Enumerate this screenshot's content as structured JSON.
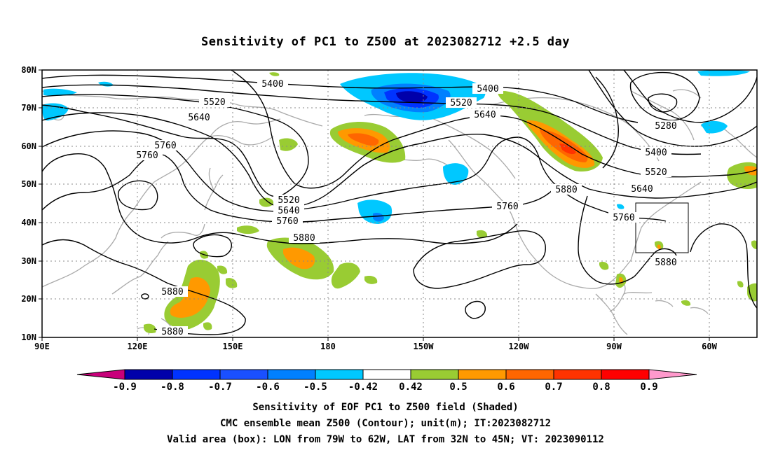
{
  "title": "Sensitivity of PC1 to Z500 at 2023082712 +2.5 day",
  "map": {
    "lon_labels": [
      "90E",
      "120E",
      "150E",
      "180",
      "150W",
      "120W",
      "90W",
      "60W"
    ],
    "lat_labels": [
      "80N",
      "70N",
      "60N",
      "50N",
      "40N",
      "30N",
      "20N",
      "10N"
    ],
    "contour_labels": [
      "5400",
      "5400",
      "5520",
      "5520",
      "5640",
      "5640",
      "5760",
      "5760",
      "5520",
      "5640",
      "5760",
      "5880",
      "5760",
      "5880",
      "5280",
      "5400",
      "5520",
      "5640",
      "5760",
      "5880",
      "5880",
      "5880"
    ],
    "valid_box": {
      "lon_w": -79,
      "lon_e": -62,
      "lat_s": 32,
      "lat_n": 45
    }
  },
  "colorbar": {
    "labels": [
      "-0.9",
      "-0.8",
      "-0.7",
      "-0.6",
      "-0.5",
      "-0.42",
      "0.42",
      "0.5",
      "0.6",
      "0.7",
      "0.8",
      "0.9"
    ],
    "colors": [
      "#0000aa",
      "#0033ff",
      "#1a50ff",
      "#0080ff",
      "#00c8ff",
      "#ffffff",
      "#99cc33",
      "#ff9900",
      "#ff6600",
      "#ff3300",
      "#ff0000"
    ],
    "low_color": "#c8007a",
    "high_color": "#ff99cc"
  },
  "captions": {
    "line1": "Sensitivity of EOF PC1 to Z500 field (Shaded)",
    "line2": "CMC ensemble mean Z500 (Contour); unit(m); IT:2023082712",
    "line3": "Valid area (box): LON from 79W to 62W, LAT from 32N to 45N; VT: 2023090112"
  }
}
